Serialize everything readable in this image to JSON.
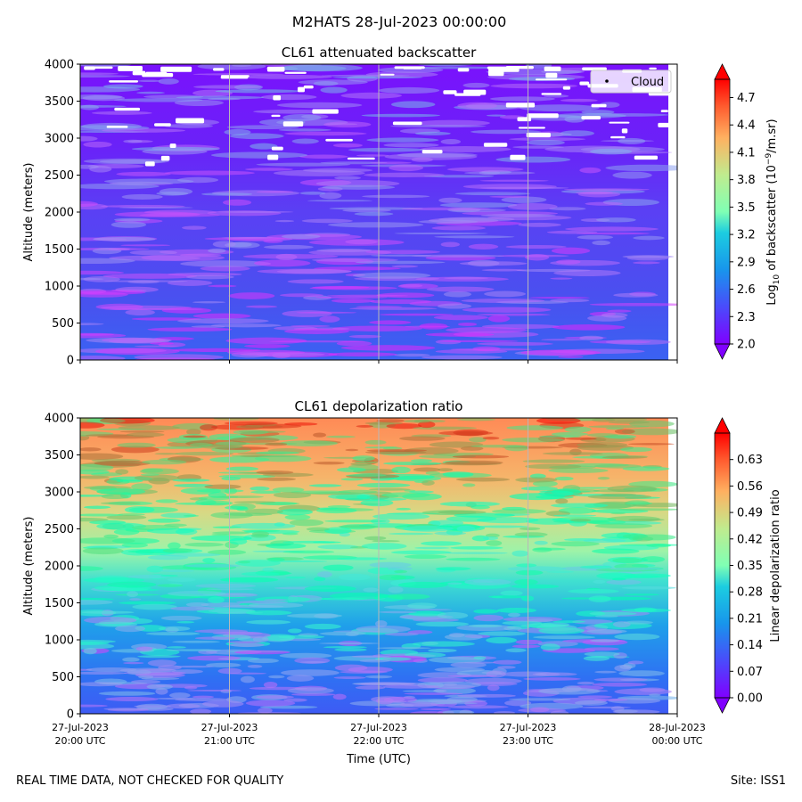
{
  "suptitle": "M2HATS 28-Jul-2023 00:00:00",
  "footer": {
    "left": "REAL TIME DATA, NOT CHECKED FOR QUALITY",
    "right": "Site: ISS1"
  },
  "chart_data": [
    {
      "type": "heatmap",
      "title": "CL61 attenuated backscatter",
      "ylabel": "Altitude (meters)",
      "ylim": [
        0,
        4000
      ],
      "yticks": [
        "0",
        "500",
        "1000",
        "1500",
        "2000",
        "2500",
        "3000",
        "3500",
        "4000"
      ],
      "xlim_hours_utc": [
        20,
        24
      ],
      "colorbar": {
        "label_main": "Log",
        "label_sub": "10",
        "label_mid": " of backscatter (10",
        "label_sup": "−9",
        "label_end": "/m.sr)",
        "min": 2.0,
        "max": 4.9,
        "ticks": [
          "2.0",
          "2.3",
          "2.6",
          "2.9",
          "3.2",
          "3.5",
          "3.8",
          "4.1",
          "4.4",
          "4.7"
        ],
        "colormap": "rainbow"
      },
      "legend": {
        "label": "Cloud",
        "marker": "black-dot",
        "location": "upper-right"
      }
    },
    {
      "type": "heatmap",
      "title": "CL61 depolarization ratio",
      "ylabel": "Altitude (meters)",
      "ylim": [
        0,
        4000
      ],
      "yticks": [
        "0",
        "500",
        "1000",
        "1500",
        "2000",
        "2500",
        "3000",
        "3500",
        "4000"
      ],
      "xlim_hours_utc": [
        20,
        24
      ],
      "xlabel": "Time (UTC)",
      "xticks": [
        {
          "line1": "27-Jul-2023",
          "line2": "20:00 UTC"
        },
        {
          "line1": "27-Jul-2023",
          "line2": "21:00 UTC"
        },
        {
          "line1": "27-Jul-2023",
          "line2": "22:00 UTC"
        },
        {
          "line1": "27-Jul-2023",
          "line2": "23:00 UTC"
        },
        {
          "line1": "28-Jul-2023",
          "line2": "00:00 UTC"
        }
      ],
      "colorbar": {
        "label": "Linear depolarization ratio",
        "min": 0.0,
        "max": 0.7,
        "ticks": [
          "0.00",
          "0.07",
          "0.14",
          "0.21",
          "0.28",
          "0.35",
          "0.42",
          "0.49",
          "0.56",
          "0.63"
        ],
        "colormap": "rainbow"
      }
    }
  ]
}
